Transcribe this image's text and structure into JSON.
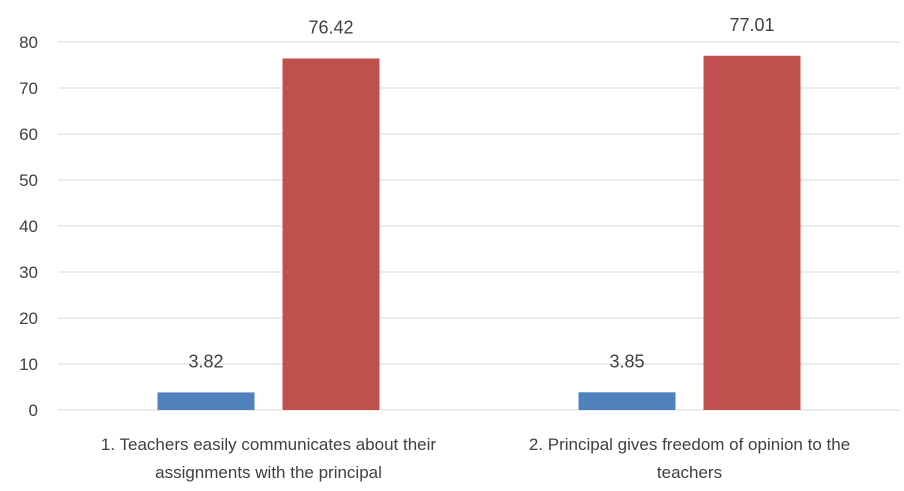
{
  "chart_data": {
    "type": "bar",
    "title": "",
    "xlabel": "",
    "ylabel": "",
    "ylim": [
      0,
      80
    ],
    "yticks": [
      0,
      10,
      20,
      30,
      40,
      50,
      60,
      70,
      80
    ],
    "grid": true,
    "legend": "none",
    "categories": [
      [
        "1. Teachers easily communicates about their",
        "assignments with the principal"
      ],
      [
        "2. Principal gives freedom of opinion to the",
        "teachers"
      ]
    ],
    "series": [
      {
        "values": [
          3.82,
          3.85
        ],
        "color": "#4F81BD"
      },
      {
        "values": [
          76.42,
          77.01
        ],
        "color": "#C0504D"
      }
    ],
    "data_labels": [
      [
        "3.82",
        "3.85"
      ],
      [
        "76.42",
        "77.01"
      ]
    ]
  }
}
